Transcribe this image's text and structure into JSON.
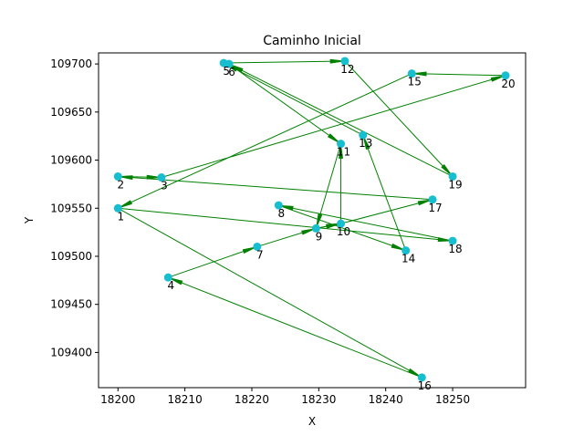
{
  "chart_data": {
    "type": "scatter",
    "title": "Caminho Inicial",
    "xlabel": "X",
    "ylabel": "Y",
    "xlim": [
      18197.1,
      18260.9
    ],
    "ylim": [
      109363.4,
      109711.5
    ],
    "xticks": [
      18200,
      18210,
      18220,
      18230,
      18240,
      18250
    ],
    "yticks": [
      109400,
      109450,
      109500,
      109550,
      109600,
      109650,
      109700
    ],
    "xtick_labels": [
      "18200",
      "18210",
      "18220",
      "18230",
      "18240",
      "18250"
    ],
    "ytick_labels": [
      "109400",
      "109450",
      "109500",
      "109550",
      "109600",
      "109650",
      "109700"
    ],
    "grid": false,
    "marker_color": "#17becf",
    "line_color": "#008000",
    "points": [
      {
        "label": "1",
        "x": 18200.0,
        "y": 109550
      },
      {
        "label": "2",
        "x": 18200.0,
        "y": 109583
      },
      {
        "label": "3",
        "x": 18206.5,
        "y": 109582
      },
      {
        "label": "4",
        "x": 18207.5,
        "y": 109478
      },
      {
        "label": "5",
        "x": 18215.8,
        "y": 109701
      },
      {
        "label": "6",
        "x": 18216.6,
        "y": 109700
      },
      {
        "label": "7",
        "x": 18220.8,
        "y": 109510
      },
      {
        "label": "8",
        "x": 18224.0,
        "y": 109553
      },
      {
        "label": "9",
        "x": 18229.6,
        "y": 109529
      },
      {
        "label": "10",
        "x": 18233.3,
        "y": 109534
      },
      {
        "label": "11",
        "x": 18233.3,
        "y": 109617
      },
      {
        "label": "12",
        "x": 18233.9,
        "y": 109703
      },
      {
        "label": "13",
        "x": 18236.6,
        "y": 109626
      },
      {
        "label": "14",
        "x": 18243.0,
        "y": 109506
      },
      {
        "label": "15",
        "x": 18243.9,
        "y": 109690
      },
      {
        "label": "16",
        "x": 18245.4,
        "y": 109374
      },
      {
        "label": "17",
        "x": 18247.0,
        "y": 109559
      },
      {
        "label": "18",
        "x": 18250.0,
        "y": 109516
      },
      {
        "label": "19",
        "x": 18250.0,
        "y": 109583
      },
      {
        "label": "20",
        "x": 18257.9,
        "y": 109688
      }
    ],
    "path": [
      1,
      18,
      8,
      14,
      13,
      5,
      12,
      19,
      6,
      11,
      9,
      10,
      17,
      2,
      3,
      20,
      15,
      1,
      16,
      4,
      7,
      9,
      10,
      11
    ]
  }
}
